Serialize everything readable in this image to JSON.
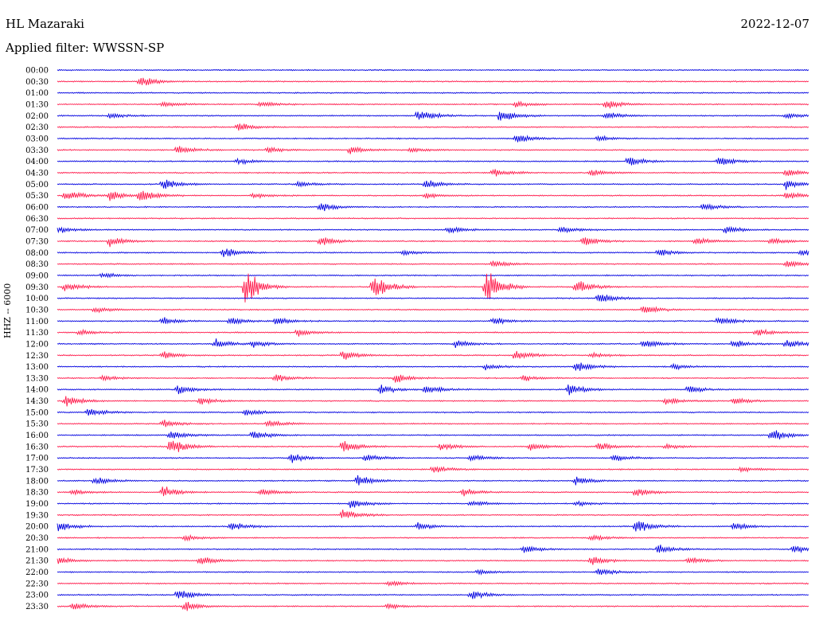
{
  "header": {
    "station": "HL Mazaraki",
    "date": "2022-12-07",
    "filter_label": "Applied filter: WWSSN-SP"
  },
  "channel_label": "HHZ -- 6000",
  "colors": {
    "odd_trace": "#0000e0",
    "even_trace": "#ff1a4b"
  },
  "chart_data": {
    "type": "line",
    "description_type": "helicorder",
    "rows": [
      "00:00",
      "00:30",
      "01:00",
      "01:30",
      "02:00",
      "02:30",
      "03:00",
      "03:30",
      "04:00",
      "04:30",
      "05:00",
      "05:30",
      "06:00",
      "06:30",
      "07:00",
      "07:30",
      "08:00",
      "08:30",
      "09:00",
      "09:30",
      "10:00",
      "10:30",
      "11:00",
      "11:30",
      "12:00",
      "12:30",
      "13:00",
      "13:30",
      "14:00",
      "14:30",
      "15:00",
      "15:30",
      "16:00",
      "16:30",
      "17:00",
      "17:30",
      "18:00",
      "18:30",
      "19:00",
      "19:30",
      "20:00",
      "20:30",
      "21:00",
      "21:30",
      "22:00",
      "22:30",
      "23:00",
      "23:30"
    ],
    "row_colors": [
      "blue",
      "red"
    ],
    "events": [
      {
        "row": "00:30",
        "t": 0.11,
        "amp": 0.6
      },
      {
        "row": "01:30",
        "t": 0.14,
        "amp": 0.3
      },
      {
        "row": "01:30",
        "t": 0.27,
        "amp": 0.3
      },
      {
        "row": "01:30",
        "t": 0.61,
        "amp": 0.3
      },
      {
        "row": "01:30",
        "t": 0.73,
        "amp": 0.5
      },
      {
        "row": "02:00",
        "t": 0.07,
        "amp": 0.3
      },
      {
        "row": "02:00",
        "t": 0.48,
        "amp": 0.8
      },
      {
        "row": "02:00",
        "t": 0.59,
        "amp": 0.8
      },
      {
        "row": "02:00",
        "t": 0.73,
        "amp": 0.4
      },
      {
        "row": "02:00",
        "t": 0.97,
        "amp": 0.3
      },
      {
        "row": "02:30",
        "t": 0.24,
        "amp": 0.5
      },
      {
        "row": "03:00",
        "t": 0.61,
        "amp": 0.5
      },
      {
        "row": "03:00",
        "t": 0.72,
        "amp": 0.3
      },
      {
        "row": "03:30",
        "t": 0.16,
        "amp": 0.5
      },
      {
        "row": "03:30",
        "t": 0.28,
        "amp": 0.3
      },
      {
        "row": "03:30",
        "t": 0.39,
        "amp": 0.4
      },
      {
        "row": "03:30",
        "t": 0.47,
        "amp": 0.3
      },
      {
        "row": "04:00",
        "t": 0.24,
        "amp": 0.3
      },
      {
        "row": "04:00",
        "t": 0.76,
        "amp": 0.5
      },
      {
        "row": "04:00",
        "t": 0.88,
        "amp": 0.5
      },
      {
        "row": "04:30",
        "t": 0.58,
        "amp": 0.5
      },
      {
        "row": "04:30",
        "t": 0.71,
        "amp": 0.4
      },
      {
        "row": "04:30",
        "t": 0.97,
        "amp": 0.4
      },
      {
        "row": "05:00",
        "t": 0.14,
        "amp": 0.6
      },
      {
        "row": "05:00",
        "t": 0.32,
        "amp": 0.3
      },
      {
        "row": "05:00",
        "t": 0.49,
        "amp": 0.5
      },
      {
        "row": "05:00",
        "t": 0.97,
        "amp": 0.5
      },
      {
        "row": "05:30",
        "t": 0.01,
        "amp": 0.6
      },
      {
        "row": "05:30",
        "t": 0.07,
        "amp": 0.6
      },
      {
        "row": "05:30",
        "t": 0.11,
        "amp": 0.7
      },
      {
        "row": "05:30",
        "t": 0.26,
        "amp": 0.3
      },
      {
        "row": "05:30",
        "t": 0.49,
        "amp": 0.3
      },
      {
        "row": "05:30",
        "t": 0.97,
        "amp": 0.4
      },
      {
        "row": "06:00",
        "t": 0.35,
        "amp": 0.5
      },
      {
        "row": "06:00",
        "t": 0.86,
        "amp": 0.4
      },
      {
        "row": "07:00",
        "t": 0.0,
        "amp": 0.4
      },
      {
        "row": "07:00",
        "t": 0.52,
        "amp": 0.4
      },
      {
        "row": "07:00",
        "t": 0.67,
        "amp": 0.4
      },
      {
        "row": "07:00",
        "t": 0.89,
        "amp": 0.4
      },
      {
        "row": "07:30",
        "t": 0.07,
        "amp": 0.5
      },
      {
        "row": "07:30",
        "t": 0.35,
        "amp": 0.5
      },
      {
        "row": "07:30",
        "t": 0.7,
        "amp": 0.5
      },
      {
        "row": "07:30",
        "t": 0.85,
        "amp": 0.4
      },
      {
        "row": "07:30",
        "t": 0.95,
        "amp": 0.4
      },
      {
        "row": "08:00",
        "t": 0.22,
        "amp": 0.6
      },
      {
        "row": "08:00",
        "t": 0.46,
        "amp": 0.3
      },
      {
        "row": "08:00",
        "t": 0.8,
        "amp": 0.4
      },
      {
        "row": "08:00",
        "t": 0.99,
        "amp": 0.4
      },
      {
        "row": "08:30",
        "t": 0.58,
        "amp": 0.4
      },
      {
        "row": "08:30",
        "t": 0.97,
        "amp": 0.4
      },
      {
        "row": "09:00",
        "t": 0.06,
        "amp": 0.3
      },
      {
        "row": "09:30",
        "t": 0.01,
        "amp": 0.5
      },
      {
        "row": "09:30",
        "t": 0.25,
        "amp": 1.8
      },
      {
        "row": "09:30",
        "t": 0.42,
        "amp": 1.4
      },
      {
        "row": "09:30",
        "t": 0.57,
        "amp": 1.8
      },
      {
        "row": "09:30",
        "t": 0.69,
        "amp": 0.8
      },
      {
        "row": "10:00",
        "t": 0.72,
        "amp": 0.6
      },
      {
        "row": "10:30",
        "t": 0.05,
        "amp": 0.3
      },
      {
        "row": "10:30",
        "t": 0.78,
        "amp": 0.5
      },
      {
        "row": "11:00",
        "t": 0.14,
        "amp": 0.4
      },
      {
        "row": "11:00",
        "t": 0.23,
        "amp": 0.4
      },
      {
        "row": "11:00",
        "t": 0.29,
        "amp": 0.4
      },
      {
        "row": "11:00",
        "t": 0.58,
        "amp": 0.4
      },
      {
        "row": "11:00",
        "t": 0.88,
        "amp": 0.5
      },
      {
        "row": "11:30",
        "t": 0.03,
        "amp": 0.3
      },
      {
        "row": "11:30",
        "t": 0.32,
        "amp": 0.4
      },
      {
        "row": "11:30",
        "t": 0.93,
        "amp": 0.4
      },
      {
        "row": "12:00",
        "t": 0.21,
        "amp": 0.5
      },
      {
        "row": "12:00",
        "t": 0.26,
        "amp": 0.4
      },
      {
        "row": "12:00",
        "t": 0.53,
        "amp": 0.4
      },
      {
        "row": "12:00",
        "t": 0.78,
        "amp": 0.5
      },
      {
        "row": "12:00",
        "t": 0.9,
        "amp": 0.5
      },
      {
        "row": "12:00",
        "t": 0.97,
        "amp": 0.5
      },
      {
        "row": "12:30",
        "t": 0.14,
        "amp": 0.4
      },
      {
        "row": "12:30",
        "t": 0.38,
        "amp": 0.5
      },
      {
        "row": "12:30",
        "t": 0.61,
        "amp": 0.5
      },
      {
        "row": "12:30",
        "t": 0.71,
        "amp": 0.3
      },
      {
        "row": "13:00",
        "t": 0.57,
        "amp": 0.3
      },
      {
        "row": "13:00",
        "t": 0.69,
        "amp": 0.6
      },
      {
        "row": "13:00",
        "t": 0.82,
        "amp": 0.3
      },
      {
        "row": "13:30",
        "t": 0.06,
        "amp": 0.3
      },
      {
        "row": "13:30",
        "t": 0.29,
        "amp": 0.4
      },
      {
        "row": "13:30",
        "t": 0.45,
        "amp": 0.5
      },
      {
        "row": "13:30",
        "t": 0.62,
        "amp": 0.3
      },
      {
        "row": "14:00",
        "t": 0.16,
        "amp": 0.5
      },
      {
        "row": "14:00",
        "t": 0.43,
        "amp": 0.5
      },
      {
        "row": "14:00",
        "t": 0.49,
        "amp": 0.5
      },
      {
        "row": "14:00",
        "t": 0.68,
        "amp": 0.6
      },
      {
        "row": "14:00",
        "t": 0.84,
        "amp": 0.4
      },
      {
        "row": "14:30",
        "t": 0.01,
        "amp": 0.6
      },
      {
        "row": "14:30",
        "t": 0.19,
        "amp": 0.4
      },
      {
        "row": "14:30",
        "t": 0.81,
        "amp": 0.4
      },
      {
        "row": "14:30",
        "t": 0.9,
        "amp": 0.4
      },
      {
        "row": "15:00",
        "t": 0.04,
        "amp": 0.5
      },
      {
        "row": "15:00",
        "t": 0.25,
        "amp": 0.4
      },
      {
        "row": "15:30",
        "t": 0.14,
        "amp": 0.4
      },
      {
        "row": "15:30",
        "t": 0.28,
        "amp": 0.4
      },
      {
        "row": "16:00",
        "t": 0.15,
        "amp": 0.5
      },
      {
        "row": "16:00",
        "t": 0.26,
        "amp": 0.5
      },
      {
        "row": "16:00",
        "t": 0.95,
        "amp": 0.7
      },
      {
        "row": "16:30",
        "t": 0.15,
        "amp": 0.9
      },
      {
        "row": "16:30",
        "t": 0.38,
        "amp": 0.6
      },
      {
        "row": "16:30",
        "t": 0.51,
        "amp": 0.4
      },
      {
        "row": "16:30",
        "t": 0.63,
        "amp": 0.4
      },
      {
        "row": "16:30",
        "t": 0.72,
        "amp": 0.5
      },
      {
        "row": "16:30",
        "t": 0.81,
        "amp": 0.3
      },
      {
        "row": "17:00",
        "t": 0.31,
        "amp": 0.5
      },
      {
        "row": "17:00",
        "t": 0.41,
        "amp": 0.4
      },
      {
        "row": "17:00",
        "t": 0.55,
        "amp": 0.4
      },
      {
        "row": "17:00",
        "t": 0.74,
        "amp": 0.4
      },
      {
        "row": "17:30",
        "t": 0.5,
        "amp": 0.4
      },
      {
        "row": "17:30",
        "t": 0.91,
        "amp": 0.3
      },
      {
        "row": "18:00",
        "t": 0.05,
        "amp": 0.4
      },
      {
        "row": "18:00",
        "t": 0.4,
        "amp": 0.6
      },
      {
        "row": "18:00",
        "t": 0.69,
        "amp": 0.5
      },
      {
        "row": "18:30",
        "t": 0.02,
        "amp": 0.3
      },
      {
        "row": "18:30",
        "t": 0.14,
        "amp": 0.6
      },
      {
        "row": "18:30",
        "t": 0.27,
        "amp": 0.4
      },
      {
        "row": "18:30",
        "t": 0.54,
        "amp": 0.4
      },
      {
        "row": "18:30",
        "t": 0.77,
        "amp": 0.5
      },
      {
        "row": "19:00",
        "t": 0.39,
        "amp": 0.5
      },
      {
        "row": "19:00",
        "t": 0.55,
        "amp": 0.3
      },
      {
        "row": "19:00",
        "t": 0.69,
        "amp": 0.3
      },
      {
        "row": "19:30",
        "t": 0.38,
        "amp": 0.6
      },
      {
        "row": "20:00",
        "t": 0.0,
        "amp": 0.6
      },
      {
        "row": "20:00",
        "t": 0.23,
        "amp": 0.5
      },
      {
        "row": "20:00",
        "t": 0.48,
        "amp": 0.4
      },
      {
        "row": "20:00",
        "t": 0.77,
        "amp": 0.7
      },
      {
        "row": "20:00",
        "t": 0.9,
        "amp": 0.4
      },
      {
        "row": "20:30",
        "t": 0.17,
        "amp": 0.3
      },
      {
        "row": "20:30",
        "t": 0.71,
        "amp": 0.3
      },
      {
        "row": "21:00",
        "t": 0.62,
        "amp": 0.4
      },
      {
        "row": "21:00",
        "t": 0.8,
        "amp": 0.5
      },
      {
        "row": "21:00",
        "t": 0.98,
        "amp": 0.5
      },
      {
        "row": "21:30",
        "t": 0.0,
        "amp": 0.4
      },
      {
        "row": "21:30",
        "t": 0.19,
        "amp": 0.5
      },
      {
        "row": "21:30",
        "t": 0.71,
        "amp": 0.5
      },
      {
        "row": "21:30",
        "t": 0.84,
        "amp": 0.4
      },
      {
        "row": "22:00",
        "t": 0.56,
        "amp": 0.3
      },
      {
        "row": "22:00",
        "t": 0.72,
        "amp": 0.4
      },
      {
        "row": "22:30",
        "t": 0.44,
        "amp": 0.3
      },
      {
        "row": "23:00",
        "t": 0.16,
        "amp": 0.6
      },
      {
        "row": "23:00",
        "t": 0.55,
        "amp": 0.5
      },
      {
        "row": "23:30",
        "t": 0.02,
        "amp": 0.4
      },
      {
        "row": "23:30",
        "t": 0.17,
        "amp": 0.5
      },
      {
        "row": "23:30",
        "t": 0.44,
        "amp": 0.3
      }
    ]
  }
}
